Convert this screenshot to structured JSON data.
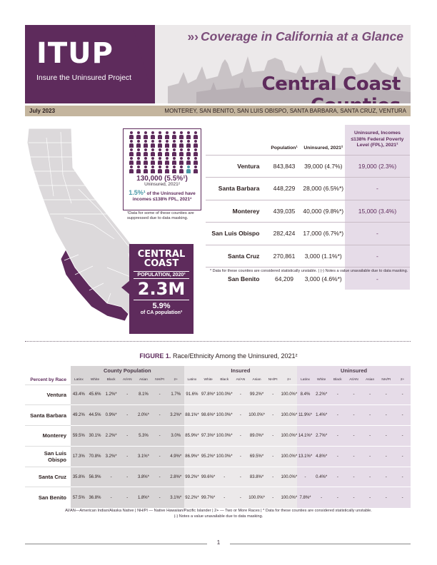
{
  "header": {
    "logo": "ITUP",
    "logo_sub": "Insure the Uninsured Project",
    "tagline_chevrons": "»›",
    "tagline": "Coverage in California at a Glance",
    "title": "Central Coast Counties",
    "date": "July 2023",
    "counties_list": "MONTEREY, SAN BENITO, SAN LUIS OBISPO, SANTA BARBARA, SANTA CRUZ, VENTURA"
  },
  "colors": {
    "brand_purple": "#5e2b5c",
    "accent_teal": "#4a98a8",
    "band_tan": "#c4b59e",
    "lavender": "#e6dce8"
  },
  "uninsured_box": {
    "icon": "person-icon",
    "count": "130,000 (5.5%¹)",
    "label": "Uninsured, 2021²",
    "pct": "1.5%¹",
    "pct_label_line1": "of the Uninsured have",
    "pct_label_line2": "incomes ≤138% FPL, 2021²",
    "note": "¹Data for some of these counties are suppressed due to data masking."
  },
  "central_coast": {
    "title_line1": "CENTRAL",
    "title_line2": "COAST",
    "pop_label": "POPULATION, 2020³",
    "pop": "2.3M",
    "pct": "5.9%",
    "pct_label": "of CA population³"
  },
  "county_table": {
    "headers": {
      "population": "Population¹",
      "uninsured": "Uninsured, 2021²",
      "fpl": "Uninsured, Incomes ≤138% Federal Poverty Level (FPL), 2021²"
    },
    "rows": [
      {
        "name": "Ventura",
        "population": "843,843",
        "uninsured": "39,000 (4.7%)",
        "fpl": "19,000 (2.3%)"
      },
      {
        "name": "Santa Barbara",
        "population": "448,229",
        "uninsured": "28,000 (6.5%*)",
        "fpl": "-"
      },
      {
        "name": "Monterey",
        "population": "439,035",
        "uninsured": "40,000 (9.8%*)",
        "fpl": "15,000 (3.4%)"
      },
      {
        "name": "San Luis Obispo",
        "population": "282,424",
        "uninsured": "17,000 (6.7%*)",
        "fpl": "-"
      },
      {
        "name": "Santa Cruz",
        "population": "270,861",
        "uninsured": "3,000 (1.1%*)",
        "fpl": "-"
      },
      {
        "name": "San Benito",
        "population": "64,209",
        "uninsured": "3,000 (4.6%*)",
        "fpl": "-"
      }
    ],
    "note": "* Data for these counties are considered statistically unstable. | (-) Notes a value unavailable due to data masking."
  },
  "figure": {
    "label": "FIGURE 1.",
    "title": "Race/Ethnicity Among the Uninsured, 2021²",
    "row_header": "Percent by Race",
    "groups": [
      "County Population",
      "Insured",
      "Uninsured"
    ],
    "subheaders": [
      "Latinx",
      "White",
      "Black",
      "AI/AN",
      "Asian",
      "NH/PI",
      "2+"
    ],
    "rows": [
      {
        "name": "Ventura",
        "cells": [
          "43.4%",
          "45.6%",
          "1.2%*",
          "-",
          "8.1%",
          "-",
          "1.7%",
          "91.6%",
          "97.8%*",
          "100.0%*",
          "-",
          "99.2%*",
          "-",
          "100.0%*",
          "8.4%",
          "2.2%*",
          "-",
          "-",
          "-",
          "-",
          "-"
        ]
      },
      {
        "name": "Santa Barbara",
        "cells": [
          "49.2%",
          "44.5%",
          "0.9%*",
          "-",
          "2.0%*",
          "-",
          "3.2%*",
          "88.1%*",
          "98.6%*",
          "100.0%*",
          "-",
          "100.0%*",
          "-",
          "100.0%*",
          "11.9%*",
          "1.4%*",
          "-",
          "-",
          "-",
          "-",
          "-"
        ]
      },
      {
        "name": "Monterey",
        "cells": [
          "59.5%",
          "30.1%",
          "2.2%*",
          "-",
          "5.3%",
          "-",
          "3.0%",
          "85.9%*",
          "97.3%*",
          "100.0%*",
          "-",
          "89.0%*",
          "-",
          "100.0%*",
          "14.1%*",
          "2.7%*",
          "-",
          "-",
          "-",
          "-",
          "-"
        ]
      },
      {
        "name": "San Luis Obispo",
        "cells": [
          "17.3%",
          "70.8%",
          "3.2%*",
          "-",
          "3.1%*",
          "-",
          "4.9%*",
          "86.9%*",
          "95.2%*",
          "100.0%*",
          "-",
          "69.5%*",
          "-",
          "100.0%*",
          "13.1%*",
          "4.8%*",
          "-",
          "-",
          "-",
          "-",
          "-"
        ]
      },
      {
        "name": "Santa Cruz",
        "cells": [
          "35.8%",
          "56.9%",
          "-",
          "-",
          "3.8%*",
          "-",
          "2.8%*",
          "99.2%*",
          "99.6%*",
          "-",
          "-",
          "83.8%*",
          "-",
          "100.0%*",
          "-",
          "0.4%*",
          "-",
          "-",
          "-",
          "-",
          "-"
        ]
      },
      {
        "name": "San Benito",
        "cells": [
          "57.5%",
          "36.8%",
          "-",
          "-",
          "1.8%*",
          "-",
          "3.1%*",
          "92.2%*",
          "99.7%*",
          "-",
          "-",
          "100.0%*",
          "-",
          "100.0%*",
          "7.8%*",
          "-",
          "-",
          "-",
          "-",
          "-",
          "-"
        ]
      }
    ],
    "footnote_line1": "AI/AN—American Indian/Alaska Native | NH/PI — Native Hawaiian/Pacific Islander | 2+ — Two or More Races | * Data for these counties are considered statistically unstable.",
    "footnote_line2": "(-) Notes a value unavailable due to data masking."
  },
  "page_number": "1"
}
